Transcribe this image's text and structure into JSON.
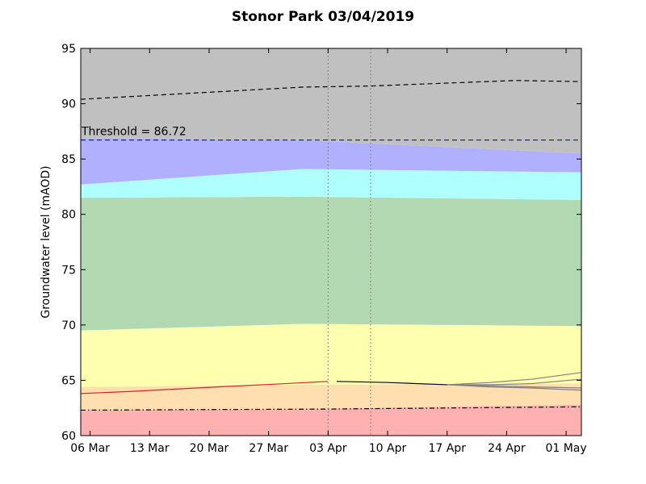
{
  "chart_data": {
    "type": "line",
    "title": "Stonor Park 03/04/2019",
    "ylabel": "Groundwater level (mAOD)",
    "xlim": [
      63.9,
      122.8
    ],
    "ylim": [
      60,
      95
    ],
    "yticks": [
      60,
      65,
      70,
      75,
      80,
      85,
      90,
      95
    ],
    "xticks": [
      {
        "value": 65,
        "label": "06 Mar"
      },
      {
        "value": 72,
        "label": "13 Mar"
      },
      {
        "value": 79,
        "label": "20 Mar"
      },
      {
        "value": 86,
        "label": "27 Mar"
      },
      {
        "value": 93,
        "label": "03 Apr"
      },
      {
        "value": 100,
        "label": "10 Apr"
      },
      {
        "value": 107,
        "label": "17 Apr"
      },
      {
        "value": 114,
        "label": "24 Apr"
      },
      {
        "value": 121,
        "label": "01 May"
      }
    ],
    "band_x": [
      63.9,
      90,
      122.8
    ],
    "bands": [
      {
        "color": "#ffb0b0",
        "values": [
          62.3,
          62.4,
          62.8
        ]
      },
      {
        "color": "#ffdeb0",
        "values": [
          64.4,
          64.6,
          64.7
        ]
      },
      {
        "color": "#ffffb0",
        "values": [
          69.5,
          70.1,
          69.9
        ]
      },
      {
        "color": "#b3d9b3",
        "values": [
          81.5,
          81.6,
          81.3
        ]
      },
      {
        "color": "#b0ffff",
        "values": [
          82.7,
          84.1,
          83.8
        ]
      },
      {
        "color": "#b0b0ff",
        "values": [
          86.9,
          86.7,
          85.5
        ]
      },
      {
        "color": "#c0c0c0",
        "values": [
          95,
          95,
          95
        ]
      }
    ],
    "threshold": {
      "value": 86.72,
      "label": "Threshold = 86.72",
      "color": "#0000ff",
      "style": "dashed"
    },
    "vlines": [
      {
        "x": 93,
        "color": "#808080",
        "style": "dotted"
      },
      {
        "x": 98,
        "color": "#808080",
        "style": "dotted"
      }
    ],
    "series": [
      {
        "color": "#000000",
        "style": "dashed",
        "x": [
          63.9,
          90,
          98,
          115,
          122.8
        ],
        "values": [
          90.4,
          91.5,
          91.6,
          92.1,
          92.0
        ]
      },
      {
        "color": "#000000",
        "style": "dashdot",
        "x": [
          63.9,
          93,
          122.8
        ],
        "values": [
          62.3,
          62.4,
          62.6
        ]
      },
      {
        "color": "#d62728",
        "style": "solid",
        "x": [
          63.9,
          70,
          80,
          88,
          93
        ],
        "values": [
          63.8,
          64.0,
          64.4,
          64.7,
          64.9
        ]
      },
      {
        "color": "#808080",
        "style": "solid",
        "x": [
          107,
          112,
          117,
          122.8
        ],
        "values": [
          64.6,
          64.8,
          65.1,
          65.7
        ]
      },
      {
        "color": "#808080",
        "style": "solid",
        "x": [
          107,
          112,
          117,
          122.8
        ],
        "values": [
          64.6,
          64.6,
          64.7,
          65.1
        ]
      },
      {
        "color": "#808080",
        "style": "solid",
        "x": [
          107,
          112,
          117,
          122.8
        ],
        "values": [
          64.6,
          64.5,
          64.4,
          64.3
        ]
      },
      {
        "color": "#808080",
        "style": "solid",
        "x": [
          107,
          112,
          117,
          122.8
        ],
        "values": [
          64.6,
          64.4,
          64.3,
          64.1
        ]
      },
      {
        "color": "#000033",
        "style": "solid",
        "x": [
          94,
          100,
          107
        ],
        "values": [
          64.9,
          64.8,
          64.6
        ]
      }
    ]
  }
}
